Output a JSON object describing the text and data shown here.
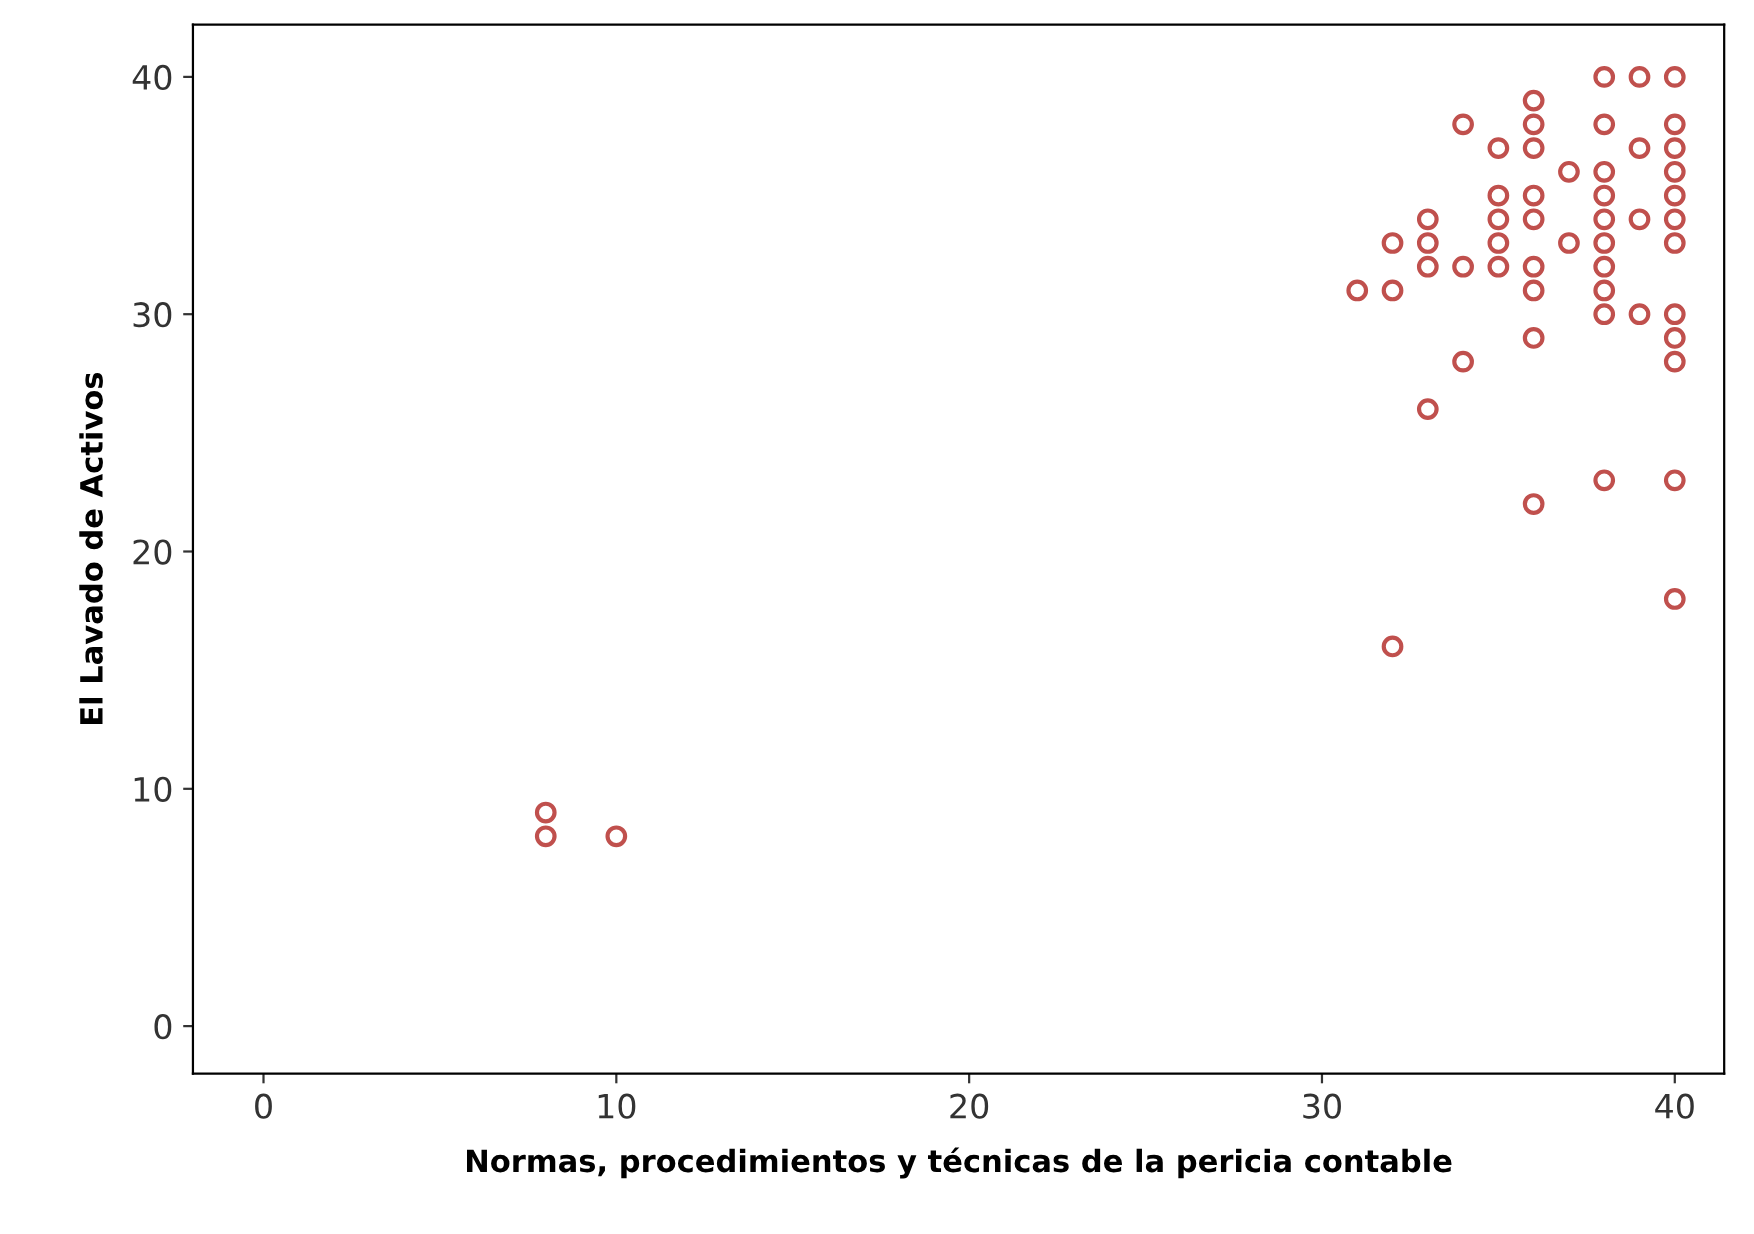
{
  "chart_data": {
    "type": "scatter",
    "xlabel": "Normas, procedimientos y técnicas de la pericia contable",
    "ylabel": "El Lavado de Activos",
    "series": [
      {
        "color": "#c0504d",
        "x": [
          8,
          8,
          10,
          31,
          32,
          32,
          32,
          33,
          33,
          33,
          33,
          34,
          34,
          34,
          35,
          35,
          35,
          35,
          35,
          36,
          36,
          36,
          36,
          36,
          36,
          36,
          36,
          36,
          37,
          37,
          38,
          38,
          38,
          38,
          38,
          38,
          38,
          38,
          38,
          38,
          39,
          39,
          39,
          39,
          40,
          40,
          40,
          40,
          40,
          40,
          40,
          40,
          40,
          40,
          40,
          40
        ],
        "values": [
          9,
          8,
          8,
          31,
          33,
          31,
          16,
          34,
          33,
          32,
          26,
          38,
          32,
          28,
          37,
          35,
          34,
          33,
          32,
          39,
          38,
          37,
          35,
          34,
          32,
          31,
          29,
          22,
          36,
          33,
          40,
          38,
          36,
          35,
          34,
          33,
          32,
          31,
          30,
          23,
          40,
          37,
          34,
          30,
          40,
          38,
          37,
          36,
          35,
          34,
          33,
          30,
          29,
          28,
          23,
          18
        ]
      }
    ],
    "xlim": [
      -2,
      41.4
    ],
    "ylim": [
      -2,
      42.2
    ],
    "xticks": [
      0,
      10,
      20,
      30,
      40
    ],
    "yticks": [
      0,
      10,
      20,
      30,
      40
    ],
    "marker": "circle",
    "grid": false,
    "legend": false
  }
}
